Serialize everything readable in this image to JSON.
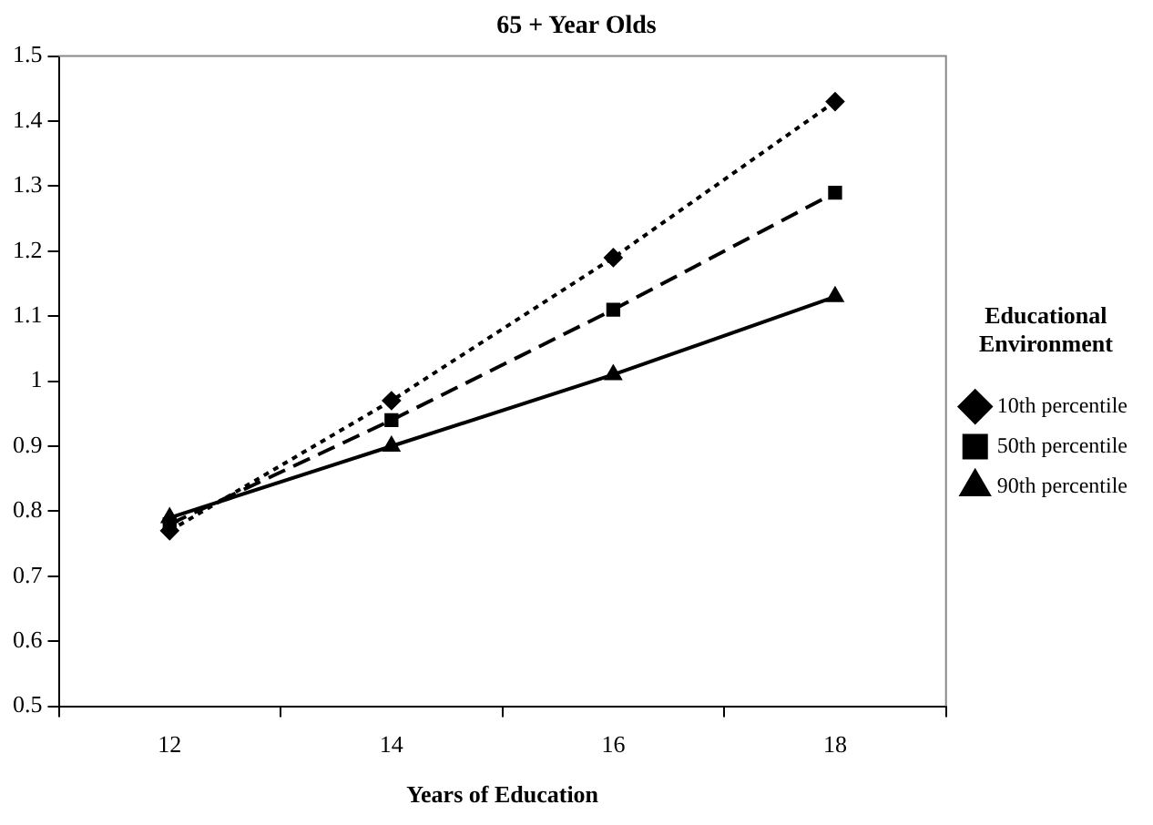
{
  "chart_data": {
    "type": "line",
    "title": "65 + Year Olds",
    "xlabel": "Years of Education",
    "legend_title": "Educational Environment",
    "categories": [
      "12",
      "14",
      "16",
      "18"
    ],
    "series": [
      {
        "name": "10th percentile",
        "color": "#000000",
        "marker": "diamond",
        "line_style": "dotted",
        "values": [
          0.77,
          0.97,
          1.19,
          1.43
        ]
      },
      {
        "name": "50th percentile",
        "color": "#000000",
        "marker": "square",
        "line_style": "dashed",
        "values": [
          0.78,
          0.94,
          1.11,
          1.29
        ]
      },
      {
        "name": "90th percentile",
        "color": "#000000",
        "marker": "triangle",
        "line_style": "solid",
        "values": [
          0.79,
          0.9,
          1.01,
          1.13
        ]
      }
    ],
    "ylim": [
      0.5,
      1.5
    ],
    "yticks": [
      0.5,
      0.6,
      0.7,
      0.8,
      0.9,
      1,
      1.1,
      1.2,
      1.3,
      1.4,
      1.5
    ],
    "grid": false,
    "legend": "right"
  }
}
